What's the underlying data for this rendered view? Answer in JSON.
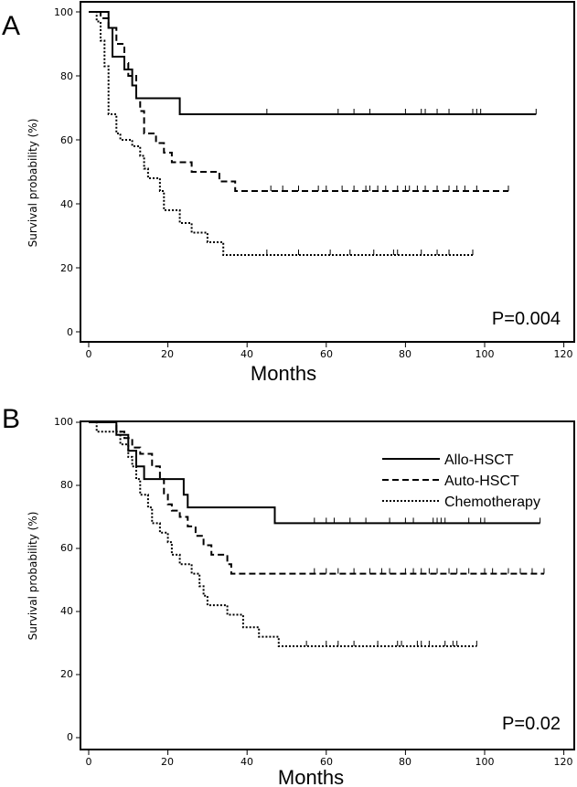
{
  "chart_data": [
    {
      "panel": "A",
      "type": "line",
      "xlabel": "Months",
      "ylabel": "Survival probability (%)",
      "xlim": [
        -2,
        122
      ],
      "ylim": [
        -3,
        102
      ],
      "xticks": [
        0,
        20,
        40,
        60,
        80,
        100,
        120
      ],
      "yticks": [
        0,
        20,
        40,
        60,
        80,
        100
      ],
      "annotation": "P=0.004",
      "series": [
        {
          "style": "solid",
          "steps": [
            [
              0,
              100
            ],
            [
              5,
              100
            ],
            [
              5,
              95
            ],
            [
              6,
              95
            ],
            [
              6,
              86
            ],
            [
              9,
              86
            ],
            [
              9,
              82
            ],
            [
              11,
              82
            ],
            [
              11,
              77
            ],
            [
              12,
              77
            ],
            [
              12,
              73
            ],
            [
              23,
              73
            ],
            [
              23,
              68
            ],
            [
              113,
              68
            ]
          ],
          "censor": [
            45,
            63,
            67,
            71,
            80,
            84,
            85,
            88,
            91,
            97,
            98,
            99,
            113
          ]
        },
        {
          "style": "dashed",
          "steps": [
            [
              0,
              100
            ],
            [
              3,
              100
            ],
            [
              3,
              98
            ],
            [
              5,
              98
            ],
            [
              5,
              95
            ],
            [
              7,
              95
            ],
            [
              7,
              90
            ],
            [
              9,
              90
            ],
            [
              9,
              84
            ],
            [
              10,
              84
            ],
            [
              10,
              80
            ],
            [
              12,
              80
            ],
            [
              12,
              73
            ],
            [
              13,
              73
            ],
            [
              13,
              69
            ],
            [
              14,
              69
            ],
            [
              14,
              62
            ],
            [
              17,
              62
            ],
            [
              17,
              59
            ],
            [
              19,
              59
            ],
            [
              19,
              56
            ],
            [
              21,
              56
            ],
            [
              21,
              53
            ],
            [
              26,
              53
            ],
            [
              26,
              50
            ],
            [
              33,
              50
            ],
            [
              33,
              47
            ],
            [
              37,
              47
            ],
            [
              37,
              44
            ],
            [
              106,
              44
            ]
          ],
          "censor": [
            46,
            49,
            53,
            58,
            60,
            64,
            67,
            70,
            71,
            73,
            75,
            78,
            80,
            81,
            83,
            85,
            88,
            91,
            93,
            95,
            98,
            106
          ]
        },
        {
          "style": "dotted",
          "steps": [
            [
              0,
              100
            ],
            [
              2,
              100
            ],
            [
              2,
              97
            ],
            [
              3,
              97
            ],
            [
              3,
              91
            ],
            [
              4,
              91
            ],
            [
              4,
              83
            ],
            [
              5,
              83
            ],
            [
              5,
              68
            ],
            [
              7,
              68
            ],
            [
              7,
              62
            ],
            [
              8,
              62
            ],
            [
              8,
              60
            ],
            [
              11,
              60
            ],
            [
              11,
              58
            ],
            [
              13,
              58
            ],
            [
              13,
              55
            ],
            [
              14,
              55
            ],
            [
              14,
              51
            ],
            [
              15,
              51
            ],
            [
              15,
              48
            ],
            [
              18,
              48
            ],
            [
              18,
              44
            ],
            [
              19,
              44
            ],
            [
              19,
              38
            ],
            [
              23,
              38
            ],
            [
              23,
              34
            ],
            [
              26,
              34
            ],
            [
              26,
              31
            ],
            [
              30,
              31
            ],
            [
              30,
              28
            ],
            [
              34,
              28
            ],
            [
              34,
              24
            ],
            [
              97,
              24
            ]
          ],
          "censor": [
            45,
            53,
            61,
            66,
            72,
            77,
            78,
            84,
            88,
            91,
            97
          ]
        }
      ]
    },
    {
      "panel": "B",
      "type": "line",
      "xlabel": "Months",
      "ylabel": "Survival probability (%)",
      "xlim": [
        -2,
        122
      ],
      "ylim": [
        -3,
        102
      ],
      "xticks": [
        0,
        20,
        40,
        60,
        80,
        100,
        120
      ],
      "yticks": [
        0,
        20,
        40,
        60,
        80,
        100
      ],
      "annotation": "P=0.02",
      "series": [
        {
          "name": "Allo-HSCT",
          "style": "solid",
          "steps": [
            [
              0,
              100
            ],
            [
              7,
              100
            ],
            [
              7,
              96
            ],
            [
              10,
              96
            ],
            [
              10,
              91
            ],
            [
              12,
              91
            ],
            [
              12,
              86
            ],
            [
              14,
              86
            ],
            [
              14,
              82
            ],
            [
              24,
              82
            ],
            [
              24,
              77
            ],
            [
              25,
              77
            ],
            [
              25,
              73
            ],
            [
              47,
              73
            ],
            [
              47,
              68
            ],
            [
              114,
              68
            ]
          ],
          "censor": [
            57,
            60,
            62,
            66,
            70,
            76,
            80,
            82,
            87,
            88,
            89,
            90,
            96,
            99,
            100,
            114
          ]
        },
        {
          "name": "Auto-HSCT",
          "style": "dashed",
          "steps": [
            [
              0,
              100
            ],
            [
              7,
              100
            ],
            [
              7,
              97
            ],
            [
              9,
              97
            ],
            [
              9,
              95
            ],
            [
              11,
              95
            ],
            [
              11,
              92
            ],
            [
              13,
              92
            ],
            [
              13,
              90
            ],
            [
              16,
              90
            ],
            [
              16,
              86
            ],
            [
              18,
              86
            ],
            [
              18,
              82
            ],
            [
              19,
              82
            ],
            [
              19,
              77
            ],
            [
              20,
              77
            ],
            [
              20,
              74
            ],
            [
              21,
              74
            ],
            [
              21,
              72
            ],
            [
              23,
              72
            ],
            [
              23,
              70
            ],
            [
              25,
              70
            ],
            [
              25,
              67
            ],
            [
              27,
              67
            ],
            [
              27,
              64
            ],
            [
              29,
              64
            ],
            [
              29,
              61
            ],
            [
              31,
              61
            ],
            [
              31,
              58
            ],
            [
              35,
              58
            ],
            [
              35,
              55
            ],
            [
              36,
              55
            ],
            [
              36,
              52
            ],
            [
              115,
              52
            ]
          ],
          "censor": [
            57,
            60,
            63,
            67,
            71,
            74,
            76,
            80,
            82,
            84,
            86,
            88,
            91,
            93,
            96,
            100,
            102,
            106,
            109,
            112,
            115
          ]
        },
        {
          "name": "Chemotherapy",
          "style": "dotted",
          "steps": [
            [
              0,
              100
            ],
            [
              2,
              100
            ],
            [
              2,
              97
            ],
            [
              8,
              97
            ],
            [
              8,
              93
            ],
            [
              10,
              93
            ],
            [
              10,
              89
            ],
            [
              11,
              89
            ],
            [
              11,
              86
            ],
            [
              12,
              86
            ],
            [
              12,
              82
            ],
            [
              13,
              82
            ],
            [
              13,
              77
            ],
            [
              15,
              77
            ],
            [
              15,
              73
            ],
            [
              16,
              73
            ],
            [
              16,
              68
            ],
            [
              18,
              68
            ],
            [
              18,
              65
            ],
            [
              20,
              65
            ],
            [
              20,
              62
            ],
            [
              21,
              62
            ],
            [
              21,
              58
            ],
            [
              23,
              58
            ],
            [
              23,
              55
            ],
            [
              26,
              55
            ],
            [
              26,
              52
            ],
            [
              28,
              52
            ],
            [
              28,
              48
            ],
            [
              29,
              48
            ],
            [
              29,
              45
            ],
            [
              30,
              45
            ],
            [
              30,
              42
            ],
            [
              35,
              42
            ],
            [
              35,
              39
            ],
            [
              39,
              39
            ],
            [
              39,
              35
            ],
            [
              43,
              35
            ],
            [
              43,
              32
            ],
            [
              48,
              32
            ],
            [
              48,
              29
            ],
            [
              98,
              29
            ]
          ],
          "censor": [
            55,
            60,
            63,
            67,
            73,
            78,
            79,
            83,
            84,
            86,
            90,
            92,
            93,
            98
          ]
        }
      ]
    }
  ],
  "panels": [
    {
      "letter": "A",
      "ylabel": "Survival probability (%)",
      "xlabel": "Months",
      "pvalue": "P=0.004",
      "yticks": [
        "0",
        "20",
        "40",
        "60",
        "80",
        "100"
      ],
      "xticks": [
        "0",
        "20",
        "40",
        "60",
        "80",
        "100",
        "120"
      ]
    },
    {
      "letter": "B",
      "ylabel": "Survival probability (%)",
      "xlabel": "Months",
      "pvalue": "P=0.02",
      "yticks": [
        "0",
        "20",
        "40",
        "60",
        "80",
        "100"
      ],
      "xticks": [
        "0",
        "20",
        "40",
        "60",
        "80",
        "100",
        "120"
      ],
      "legend": [
        "Allo-HSCT",
        "Auto-HSCT",
        "Chemotherapy"
      ]
    }
  ],
  "colors": {
    "line": "#000000",
    "axis": "#000000",
    "background": "#ffffff"
  }
}
